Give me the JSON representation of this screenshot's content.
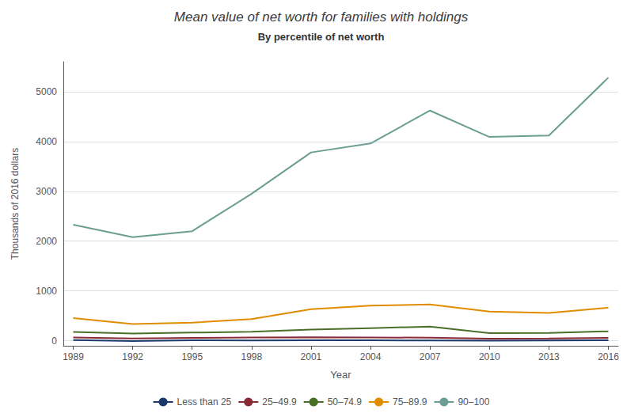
{
  "chart_data": {
    "type": "line",
    "title": "Mean value of net worth for families with holdings",
    "subtitle": "By percentile of net worth",
    "xlabel": "Year",
    "ylabel": "Thousands of 2016 dollars",
    "x": [
      1989,
      1992,
      1995,
      1998,
      2001,
      2004,
      2007,
      2010,
      2013,
      2016
    ],
    "series": [
      {
        "name": "Less than 25",
        "color": "#1a3a6b",
        "values": [
          15,
          -5,
          10,
          8,
          12,
          10,
          8,
          5,
          8,
          10
        ]
      },
      {
        "name": "25–49.9",
        "color": "#8b2a35",
        "values": [
          68,
          45,
          58,
          65,
          72,
          68,
          62,
          42,
          48,
          58
        ]
      },
      {
        "name": "50–74.9",
        "color": "#4a7028",
        "values": [
          178,
          148,
          165,
          180,
          225,
          255,
          285,
          155,
          158,
          190
        ]
      },
      {
        "name": "75–89.9",
        "color": "#e08c00",
        "values": [
          455,
          335,
          365,
          435,
          635,
          705,
          730,
          585,
          560,
          665
        ]
      },
      {
        "name": "90–100",
        "color": "#6b9e92",
        "values": [
          2330,
          2080,
          2200,
          2950,
          3780,
          3960,
          4620,
          4090,
          4120,
          5280
        ]
      }
    ],
    "xlim": [
      1988.5,
      2016.5
    ],
    "xticks": [
      1989,
      1992,
      1995,
      1998,
      2001,
      2004,
      2007,
      2010,
      2013,
      2016
    ],
    "ylim": [
      -100,
      5600
    ],
    "yticks": [
      0,
      1000,
      2000,
      3000,
      4000,
      5000
    ],
    "grid": true,
    "legend": "bottom"
  }
}
